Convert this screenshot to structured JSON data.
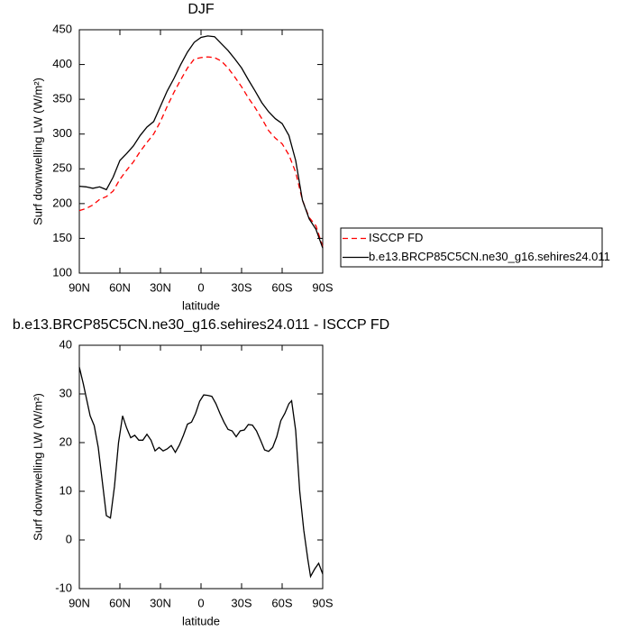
{
  "chart_data": [
    {
      "type": "line",
      "title": "DJF",
      "xlabel": "latitude",
      "ylabel": "Surf downwelling LW (W/m²)",
      "xlim": [
        90,
        -90
      ],
      "ylim": [
        100,
        450
      ],
      "xticks": [
        {
          "value": 90,
          "label": "90N"
        },
        {
          "value": 60,
          "label": "60N"
        },
        {
          "value": 30,
          "label": "30N"
        },
        0,
        {
          "value": -30,
          "label": "30S"
        },
        {
          "value": -60,
          "label": "60S"
        },
        {
          "value": -90,
          "label": "90S"
        }
      ],
      "yticks": [
        100,
        150,
        200,
        250,
        300,
        350,
        400,
        450
      ],
      "legend": "right",
      "x": [
        90,
        85,
        80,
        75,
        70,
        65,
        60,
        55,
        50,
        45,
        40,
        35,
        30,
        25,
        20,
        15,
        10,
        5,
        0,
        -5,
        -10,
        -15,
        -20,
        -25,
        -30,
        -35,
        -40,
        -45,
        -50,
        -55,
        -60,
        -65,
        -70,
        -75,
        -80,
        -85,
        -90
      ],
      "series": [
        {
          "name": "ISCCP FD",
          "color": "#ff0000",
          "dashed": true,
          "values": [
            190,
            193,
            198,
            206,
            210,
            218,
            235,
            248,
            260,
            275,
            288,
            300,
            318,
            340,
            360,
            378,
            395,
            408,
            410,
            411,
            410,
            405,
            395,
            382,
            368,
            352,
            338,
            322,
            305,
            294,
            286,
            270,
            245,
            205,
            180,
            168,
            138
          ]
        },
        {
          "name": "b.e13.BRCP85C5CN.ne30_g16.sehires24.011",
          "color": "#000000",
          "dashed": false,
          "values": [
            225,
            224,
            222,
            224,
            220,
            238,
            262,
            272,
            283,
            298,
            310,
            318,
            340,
            362,
            380,
            400,
            418,
            432,
            439,
            441,
            440,
            430,
            420,
            408,
            395,
            378,
            362,
            345,
            332,
            322,
            315,
            298,
            262,
            205,
            178,
            163,
            136
          ]
        }
      ]
    },
    {
      "type": "line",
      "title": "b.e13.BRCP85C5CN.ne30_g16.sehires24.011 - ISCCP FD",
      "xlabel": "latitude",
      "ylabel": "Surf downwelling LW (W/m²)",
      "xlim": [
        90,
        -90
      ],
      "ylim": [
        -10,
        40
      ],
      "xticks": [
        {
          "value": 90,
          "label": "90N"
        },
        {
          "value": 60,
          "label": "60N"
        },
        {
          "value": 30,
          "label": "30N"
        },
        0,
        {
          "value": -30,
          "label": "30S"
        },
        {
          "value": -60,
          "label": "60S"
        },
        {
          "value": -90,
          "label": "90S"
        }
      ],
      "yticks": [
        -10,
        0,
        10,
        20,
        30,
        40
      ],
      "x": [
        90,
        87,
        82,
        79,
        76,
        73,
        70,
        67,
        64,
        61,
        58,
        55,
        52,
        49,
        46,
        43,
        40,
        37,
        34,
        31,
        28,
        25,
        22,
        19,
        16,
        13,
        10,
        7,
        4,
        1,
        -2,
        -5,
        -8,
        -11,
        -14,
        -17,
        -20,
        -23,
        -26,
        -29,
        -32,
        -35,
        -38,
        -41,
        -44,
        -47,
        -50,
        -53,
        -56,
        -59,
        -62,
        -65,
        -67,
        -70,
        -73,
        -76,
        -79,
        -81,
        -84,
        -87,
        -90
      ],
      "series": [
        {
          "color": "#000000",
          "dashed": false,
          "values": [
            35.5,
            32,
            25.5,
            23.5,
            19,
            12,
            5,
            4.5,
            11,
            20,
            25.5,
            23,
            21,
            21.5,
            20.5,
            20.5,
            21.7,
            20.5,
            18.3,
            19,
            18.3,
            18.7,
            19.4,
            18,
            19.5,
            21.5,
            23.8,
            24.2,
            26,
            28.5,
            29.8,
            29.7,
            29.5,
            28,
            26,
            24.2,
            22.7,
            22.4,
            21.2,
            22.4,
            22.6,
            23.7,
            23.6,
            22.4,
            20.5,
            18.5,
            18.2,
            19,
            21.2,
            24.5,
            26,
            28,
            28.6,
            22.5,
            10,
            2,
            -4,
            -7.5,
            -6,
            -4.8,
            -7
          ]
        }
      ]
    }
  ]
}
